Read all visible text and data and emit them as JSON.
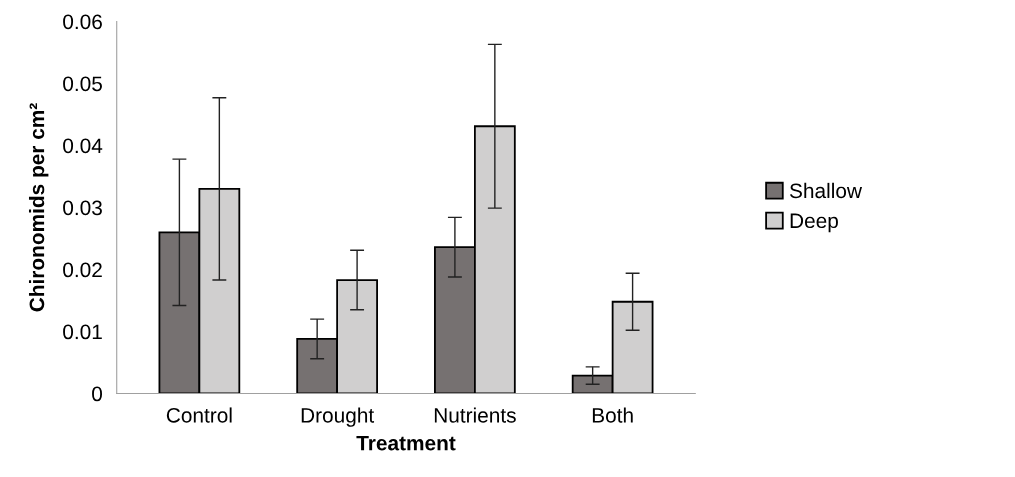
{
  "chart_data": {
    "type": "bar",
    "xlabel": "Treatment",
    "ylabel": "Chironomids per cm²",
    "categories": [
      "Control",
      "Drought",
      "Nutrients",
      "Both"
    ],
    "series": [
      {
        "name": "Shallow",
        "color": "#767171",
        "values": [
          0.026,
          0.0088,
          0.0236,
          0.0029
        ],
        "errors": [
          0.0118,
          0.0032,
          0.0048,
          0.0014
        ]
      },
      {
        "name": "Deep",
        "color": "#d0cfcf",
        "values": [
          0.033,
          0.0183,
          0.0431,
          0.0148
        ],
        "errors": [
          0.0147,
          0.0048,
          0.0132,
          0.0046
        ]
      }
    ],
    "ylim": [
      0,
      0.06
    ],
    "yticks": [
      0,
      0.01,
      0.02,
      0.03,
      0.04,
      0.05,
      0.06
    ],
    "grid": false,
    "legend": "right"
  }
}
